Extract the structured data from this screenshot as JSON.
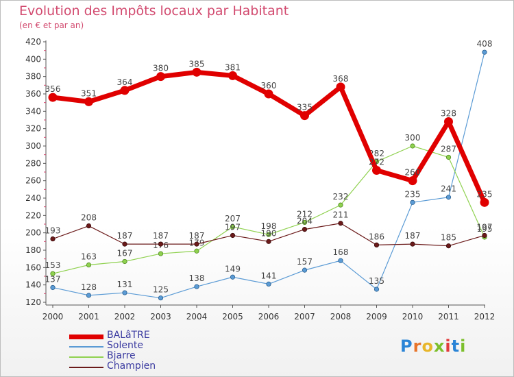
{
  "title": "Evolution des Impôts locaux par Habitant",
  "subtitle": "(en € et par an)",
  "brand": {
    "letters": [
      "P",
      "r",
      "o",
      "x",
      "i",
      "t",
      "i"
    ],
    "colors": [
      "#2a84d6",
      "#e8742a",
      "#e8b62a",
      "#7cbf2c",
      "#e23a3a",
      "#2a84d6",
      "#7cbf2c"
    ]
  },
  "chart_data": {
    "type": "line",
    "x": [
      "2000",
      "2001",
      "2002",
      "2003",
      "2004",
      "2005",
      "2006",
      "2007",
      "2008",
      "2009",
      "2010",
      "2011",
      "2012"
    ],
    "ylim": [
      120,
      420
    ],
    "yticks": [
      120,
      140,
      160,
      180,
      200,
      220,
      240,
      260,
      280,
      300,
      320,
      340,
      360,
      380,
      400,
      420
    ],
    "grid": false,
    "legend_position": "bottom-left",
    "series": [
      {
        "name": "BALâTRE",
        "color": "#e00000",
        "values": [
          356,
          351,
          364,
          380,
          385,
          381,
          360,
          335,
          368,
          272,
          260,
          328,
          235
        ]
      },
      {
        "name": "Solente",
        "color": "#5b9bd5",
        "values": [
          137,
          128,
          131,
          125,
          138,
          149,
          141,
          157,
          168,
          135,
          235,
          241,
          408
        ]
      },
      {
        "name": "Bjarre",
        "color": "#8fd14f",
        "values": [
          153,
          163,
          167,
          176,
          179,
          207,
          198,
          212,
          232,
          282,
          300,
          287,
          195
        ]
      },
      {
        "name": "Champien",
        "color": "#6b1a1a",
        "values": [
          193,
          208,
          187,
          187,
          187,
          197,
          190,
          204,
          211,
          186,
          187,
          185,
          197
        ]
      }
    ]
  }
}
